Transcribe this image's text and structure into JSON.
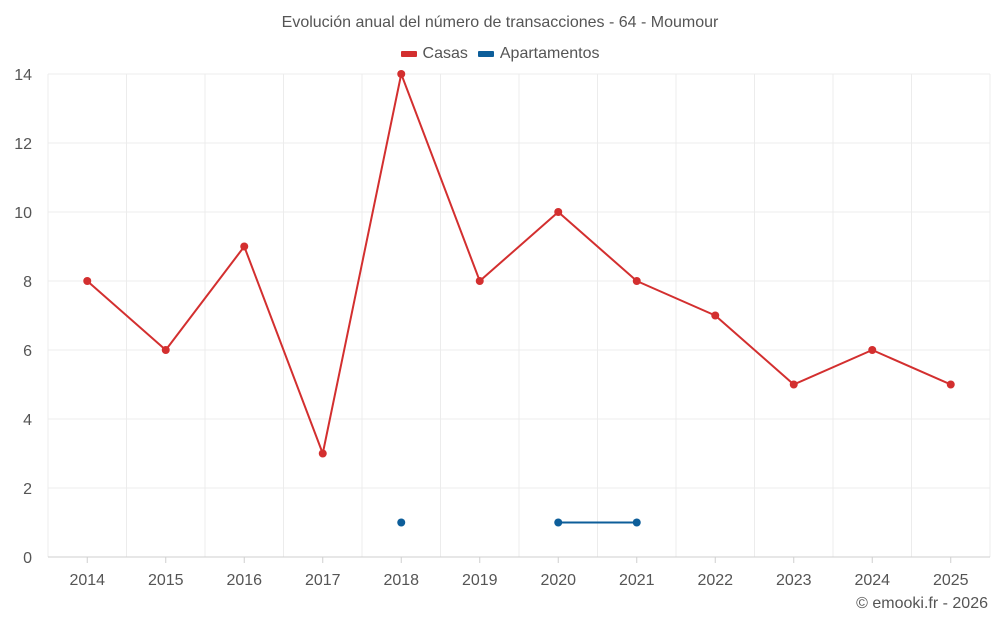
{
  "chart_data": {
    "type": "line",
    "title": "Evolución anual del número de transacciones - 64 - Moumour",
    "categories": [
      "2014",
      "2015",
      "2016",
      "2017",
      "2018",
      "2019",
      "2020",
      "2021",
      "2022",
      "2023",
      "2024",
      "2025"
    ],
    "series": [
      {
        "name": "Casas",
        "color": "#d32f2f",
        "values": [
          8,
          6,
          9,
          3,
          14,
          8,
          10,
          8,
          7,
          5,
          6,
          5
        ]
      },
      {
        "name": "Apartamentos",
        "color": "#0d5e9a",
        "values": [
          null,
          null,
          null,
          null,
          1,
          null,
          1,
          1,
          null,
          null,
          null,
          null
        ]
      }
    ],
    "y_ticks": [
      0,
      2,
      4,
      6,
      8,
      10,
      12,
      14
    ],
    "ylim": [
      0,
      14
    ],
    "xlabel": "",
    "ylabel": "",
    "grid": true,
    "legend_position": "top-center"
  },
  "credit": "© emooki.fr - 2026"
}
